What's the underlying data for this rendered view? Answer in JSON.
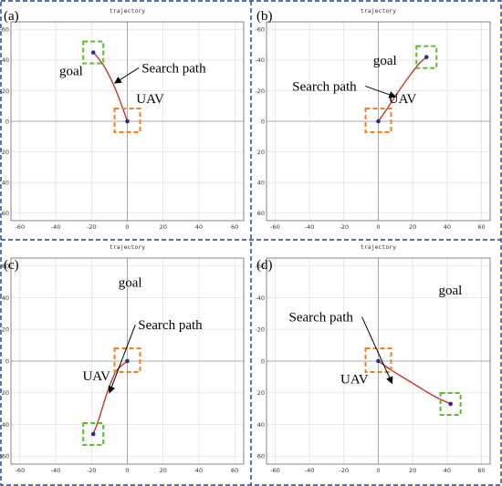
{
  "chart_data": [
    {
      "id": "a",
      "type": "line",
      "panel_label": "(a)",
      "title": "trajectory",
      "xlim": [
        -65,
        65
      ],
      "ylim": [
        -65,
        65
      ],
      "xticks": [
        -60,
        -40,
        -20,
        0,
        20,
        40,
        60
      ],
      "yticks": [
        -60,
        -40,
        -20,
        0,
        20,
        40,
        60
      ],
      "y_inverted": true,
      "grid": true,
      "uav": [
        0,
        0
      ],
      "goal": [
        -19,
        -45
      ],
      "path": [
        [
          0,
          0
        ],
        [
          -3,
          -10
        ],
        [
          -7,
          -22
        ],
        [
          -12,
          -34
        ],
        [
          -16,
          -41
        ],
        [
          -19,
          -45
        ]
      ],
      "annotations": [
        {
          "text": "goal",
          "at": [
            -38,
            -30
          ]
        },
        {
          "text": "Search path",
          "at": [
            8,
            -32
          ],
          "arrow_to": [
            -7,
            -25
          ]
        },
        {
          "text": "UAV",
          "at": [
            5,
            -12
          ]
        }
      ]
    },
    {
      "id": "b",
      "type": "line",
      "panel_label": "(b)",
      "title": "trajectory",
      "xlim": [
        -65,
        65
      ],
      "ylim": [
        -65,
        65
      ],
      "xticks": [
        -60,
        -40,
        -20,
        0,
        20,
        40,
        60
      ],
      "yticks": [
        -60,
        -40,
        -20,
        0,
        20,
        40,
        60
      ],
      "y_inverted": true,
      "grid": true,
      "uav": [
        0,
        0
      ],
      "goal": [
        28,
        -42
      ],
      "path": [
        [
          0,
          0
        ],
        [
          5,
          -8
        ],
        [
          12,
          -20
        ],
        [
          19,
          -31
        ],
        [
          24,
          -38
        ],
        [
          28,
          -42
        ]
      ],
      "annotations": [
        {
          "text": "goal",
          "at": [
            -3,
            -37
          ]
        },
        {
          "text": "Search path",
          "at": [
            -50,
            -20
          ],
          "arrow_to": [
            10,
            -16
          ]
        },
        {
          "text": "UAV",
          "at": [
            6,
            -12
          ]
        }
      ]
    },
    {
      "id": "c",
      "type": "line",
      "panel_label": "(c)",
      "title": "trajectory",
      "xlim": [
        -65,
        65
      ],
      "ylim": [
        -65,
        65
      ],
      "xticks": [
        -60,
        -40,
        -20,
        0,
        20,
        40,
        60
      ],
      "yticks": [
        -60,
        -40,
        -20,
        0,
        20,
        40,
        60
      ],
      "y_inverted": true,
      "grid": true,
      "uav": [
        0,
        0
      ],
      "goal": [
        -19,
        46
      ],
      "path": [
        [
          0,
          0
        ],
        [
          -6,
          6
        ],
        [
          -10,
          16
        ],
        [
          -13,
          26
        ],
        [
          -16,
          37
        ],
        [
          -19,
          46
        ]
      ],
      "annotations": [
        {
          "text": "UAV",
          "at": [
            -25,
            12
          ]
        },
        {
          "text": "Search path",
          "at": [
            6,
            -20
          ],
          "arrow_to": [
            -10,
            20
          ]
        },
        {
          "text": "goal",
          "at": [
            -5,
            -47
          ]
        }
      ]
    },
    {
      "id": "d",
      "type": "line",
      "panel_label": "(d)",
      "title": "trajectory",
      "xlim": [
        -65,
        65
      ],
      "ylim": [
        -65,
        65
      ],
      "xticks": [
        -60,
        -40,
        -20,
        0,
        20,
        40,
        60
      ],
      "yticks": [
        -60,
        -40,
        -20,
        0,
        20,
        40,
        60
      ],
      "y_inverted": true,
      "grid": true,
      "uav": [
        0,
        0
      ],
      "goal": [
        42,
        27
      ],
      "path": [
        [
          0,
          0
        ],
        [
          8,
          6
        ],
        [
          17,
          12
        ],
        [
          26,
          18
        ],
        [
          34,
          23
        ],
        [
          42,
          27
        ]
      ],
      "annotations": [
        {
          "text": "UAV",
          "at": [
            -22,
            14
          ]
        },
        {
          "text": "Search path",
          "at": [
            -52,
            -25
          ],
          "arrow_to": [
            8,
            14
          ]
        },
        {
          "text": "goal",
          "at": [
            35,
            -42
          ]
        }
      ]
    }
  ],
  "colors": {
    "path": "#c0392b",
    "dot": "#2c2c8c",
    "uav_box": "#f08020",
    "goal_box": "#5cba2e",
    "panel_border": "#1f3f8f"
  }
}
